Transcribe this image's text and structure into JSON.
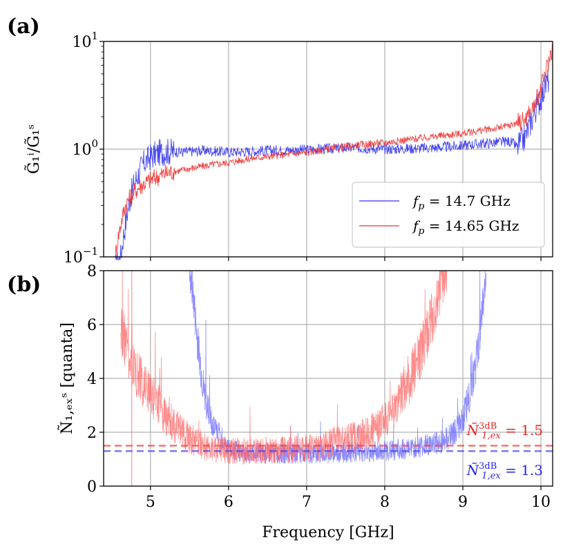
{
  "chart_data": [
    {
      "panel_label": "(a)",
      "type": "line",
      "yscale": "log",
      "ylabel": "G̃₁ⁱ/G̃₁ˢ",
      "xlim": [
        4.4,
        10.15
      ],
      "ylim": [
        0.1,
        10
      ],
      "yticks": [
        {
          "value": 10,
          "label": "10",
          "exp": "1"
        },
        {
          "value": 1,
          "label": "10",
          "exp": "0"
        },
        {
          "value": 0.1,
          "label": "10",
          "exp": "−1"
        }
      ],
      "grid": true,
      "legend_position": "lower-right",
      "series": [
        {
          "name": "f_p = 14.7 GHz",
          "name_parts": {
            "f": "f",
            "sub": "p",
            "rest": " = 14.7 GHz"
          },
          "color": "#3333ee",
          "x": [
            4.55,
            4.62,
            4.68,
            4.72,
            4.78,
            4.85,
            4.92,
            5.0,
            5.1,
            5.2,
            5.3,
            5.4,
            5.5,
            5.6,
            5.7,
            5.8,
            5.9,
            6.0,
            6.2,
            6.5,
            6.8,
            7.0,
            7.3,
            7.6,
            7.8,
            8.0,
            8.2,
            8.4,
            8.6,
            8.8,
            9.0,
            9.2,
            9.4,
            9.6,
            9.7,
            9.8,
            9.9,
            10.0,
            10.1
          ],
          "y": [
            0.08,
            0.1,
            0.2,
            0.3,
            0.45,
            0.6,
            0.75,
            0.85,
            0.92,
            0.95,
            0.95,
            0.94,
            0.95,
            0.96,
            0.97,
            0.96,
            0.95,
            0.94,
            0.95,
            0.97,
            0.98,
            0.99,
            1.01,
            1.03,
            1.02,
            1.0,
            1.01,
            1.02,
            1.03,
            1.05,
            1.08,
            1.12,
            1.15,
            1.18,
            1.05,
            1.3,
            2.0,
            3.0,
            4.5
          ],
          "noise": 0.05
        },
        {
          "name": "f_p = 14.65 GHz",
          "name_parts": {
            "f": "f",
            "sub": "p",
            "rest": " = 14.65 GHz"
          },
          "color": "#ee3333",
          "x": [
            4.55,
            4.62,
            4.68,
            4.75,
            4.82,
            4.9,
            5.0,
            5.1,
            5.2,
            5.4,
            5.6,
            5.8,
            6.0,
            6.2,
            6.4,
            6.6,
            6.8,
            7.0,
            7.2,
            7.4,
            7.6,
            7.8,
            8.0,
            8.2,
            8.4,
            8.6,
            8.8,
            9.0,
            9.2,
            9.4,
            9.6,
            9.8,
            9.9,
            10.0,
            10.1,
            10.15
          ],
          "y": [
            0.1,
            0.2,
            0.3,
            0.37,
            0.42,
            0.47,
            0.52,
            0.56,
            0.6,
            0.64,
            0.68,
            0.72,
            0.75,
            0.8,
            0.84,
            0.87,
            0.9,
            0.93,
            0.98,
            1.03,
            1.08,
            1.12,
            1.15,
            1.2,
            1.25,
            1.3,
            1.35,
            1.4,
            1.48,
            1.55,
            1.65,
            1.9,
            2.4,
            3.5,
            6.5,
            9.0
          ],
          "noise": 0.035
        }
      ]
    },
    {
      "panel_label": "(b)",
      "type": "line",
      "xlabel": "Frequency [GHz]",
      "ylabel": "Ñ₁,ₑₓˢ  [quanta]",
      "xlim": [
        4.4,
        10.15
      ],
      "ylim": [
        0,
        8
      ],
      "xticks": [
        5,
        6,
        7,
        8,
        9,
        10
      ],
      "xtick_labels": [
        "5",
        "6",
        "7",
        "8",
        "9",
        "10"
      ],
      "yticks": [
        0,
        2,
        4,
        6,
        8
      ],
      "ytick_labels": [
        "0",
        "2",
        "4",
        "6",
        "8"
      ],
      "grid": true,
      "series": [
        {
          "name": "f_p = 14.7 GHz",
          "color": "#6666ff",
          "x": [
            5.5,
            5.55,
            5.6,
            5.65,
            5.7,
            5.8,
            5.9,
            6.0,
            6.2,
            6.5,
            7.0,
            7.5,
            8.0,
            8.3,
            8.5,
            8.7,
            8.8,
            8.9,
            9.0,
            9.1,
            9.15,
            9.2,
            9.25,
            9.3
          ],
          "y": [
            8,
            7.0,
            5.5,
            4.3,
            3.2,
            2.3,
            1.8,
            1.4,
            1.25,
            1.2,
            1.2,
            1.25,
            1.3,
            1.4,
            1.5,
            1.6,
            1.75,
            2.0,
            2.5,
            3.5,
            4.2,
            5.2,
            6.5,
            8.0
          ],
          "noise": 0.35,
          "threshold": 1.3
        },
        {
          "name": "f_p = 14.65 GHz",
          "color": "#ff6666",
          "x": [
            4.62,
            4.7,
            4.8,
            4.9,
            5.0,
            5.1,
            5.2,
            5.3,
            5.4,
            5.5,
            5.6,
            5.7,
            5.8,
            6.0,
            6.5,
            7.0,
            7.5,
            7.8,
            8.0,
            8.1,
            8.2,
            8.3,
            8.4,
            8.5,
            8.6,
            8.7,
            8.8
          ],
          "y": [
            6.0,
            5.0,
            4.4,
            3.9,
            3.4,
            3.0,
            2.6,
            2.3,
            2.0,
            1.8,
            1.6,
            1.5,
            1.4,
            1.3,
            1.3,
            1.4,
            1.7,
            2.0,
            2.4,
            2.8,
            3.3,
            3.9,
            4.5,
            5.3,
            6.2,
            7.2,
            8.0
          ],
          "noise": 0.45,
          "threshold": 1.5
        }
      ],
      "annotations": [
        {
          "text": "Ñ₁,ₑₓ³ᵈᴮ = 1.5",
          "main": "Ñ",
          "sup": "3dB",
          "sub": "1,ex",
          "rest": " = 1.5",
          "color": "#ee2222",
          "position": "right, above dashed line"
        },
        {
          "text": "Ñ₁,ₑₓ³ᵈᴮ = 1.3",
          "main": "Ñ",
          "sup": "3dB",
          "sub": "1,ex",
          "rest": " = 1.3",
          "color": "#2222ee",
          "position": "lower right"
        }
      ]
    }
  ]
}
